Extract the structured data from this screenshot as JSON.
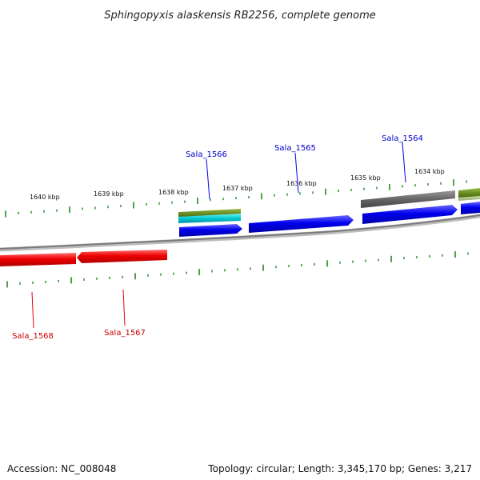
{
  "title": "Sphingopyxis alaskensis RB2256, complete genome",
  "footer": {
    "accession": "Accession: NC_008048",
    "summary": "Topology: circular; Length: 3,345,170 bp; Genes: 3,217"
  },
  "colors": {
    "forward_gene": "#0000ee",
    "reverse_gene": "#ee0000",
    "other_feature": "#666666",
    "olive_feature": "#6b8e23",
    "cyan_feature": "#00c8d2",
    "tick": "#228b22",
    "backbone": "#8c8c8c"
  },
  "kbp_labels": [
    "1640 kbp",
    "1639 kbp",
    "1638 kbp",
    "1637 kbp",
    "1636 kbp",
    "1635 kbp",
    "1634 kbp"
  ],
  "genes_top": [
    {
      "label": "Sala_1566"
    },
    {
      "label": "Sala_1565"
    },
    {
      "label": "Sala_1564"
    }
  ],
  "genes_bottom": [
    {
      "label": "Sala_1568"
    },
    {
      "label": "Sala_1567"
    }
  ]
}
